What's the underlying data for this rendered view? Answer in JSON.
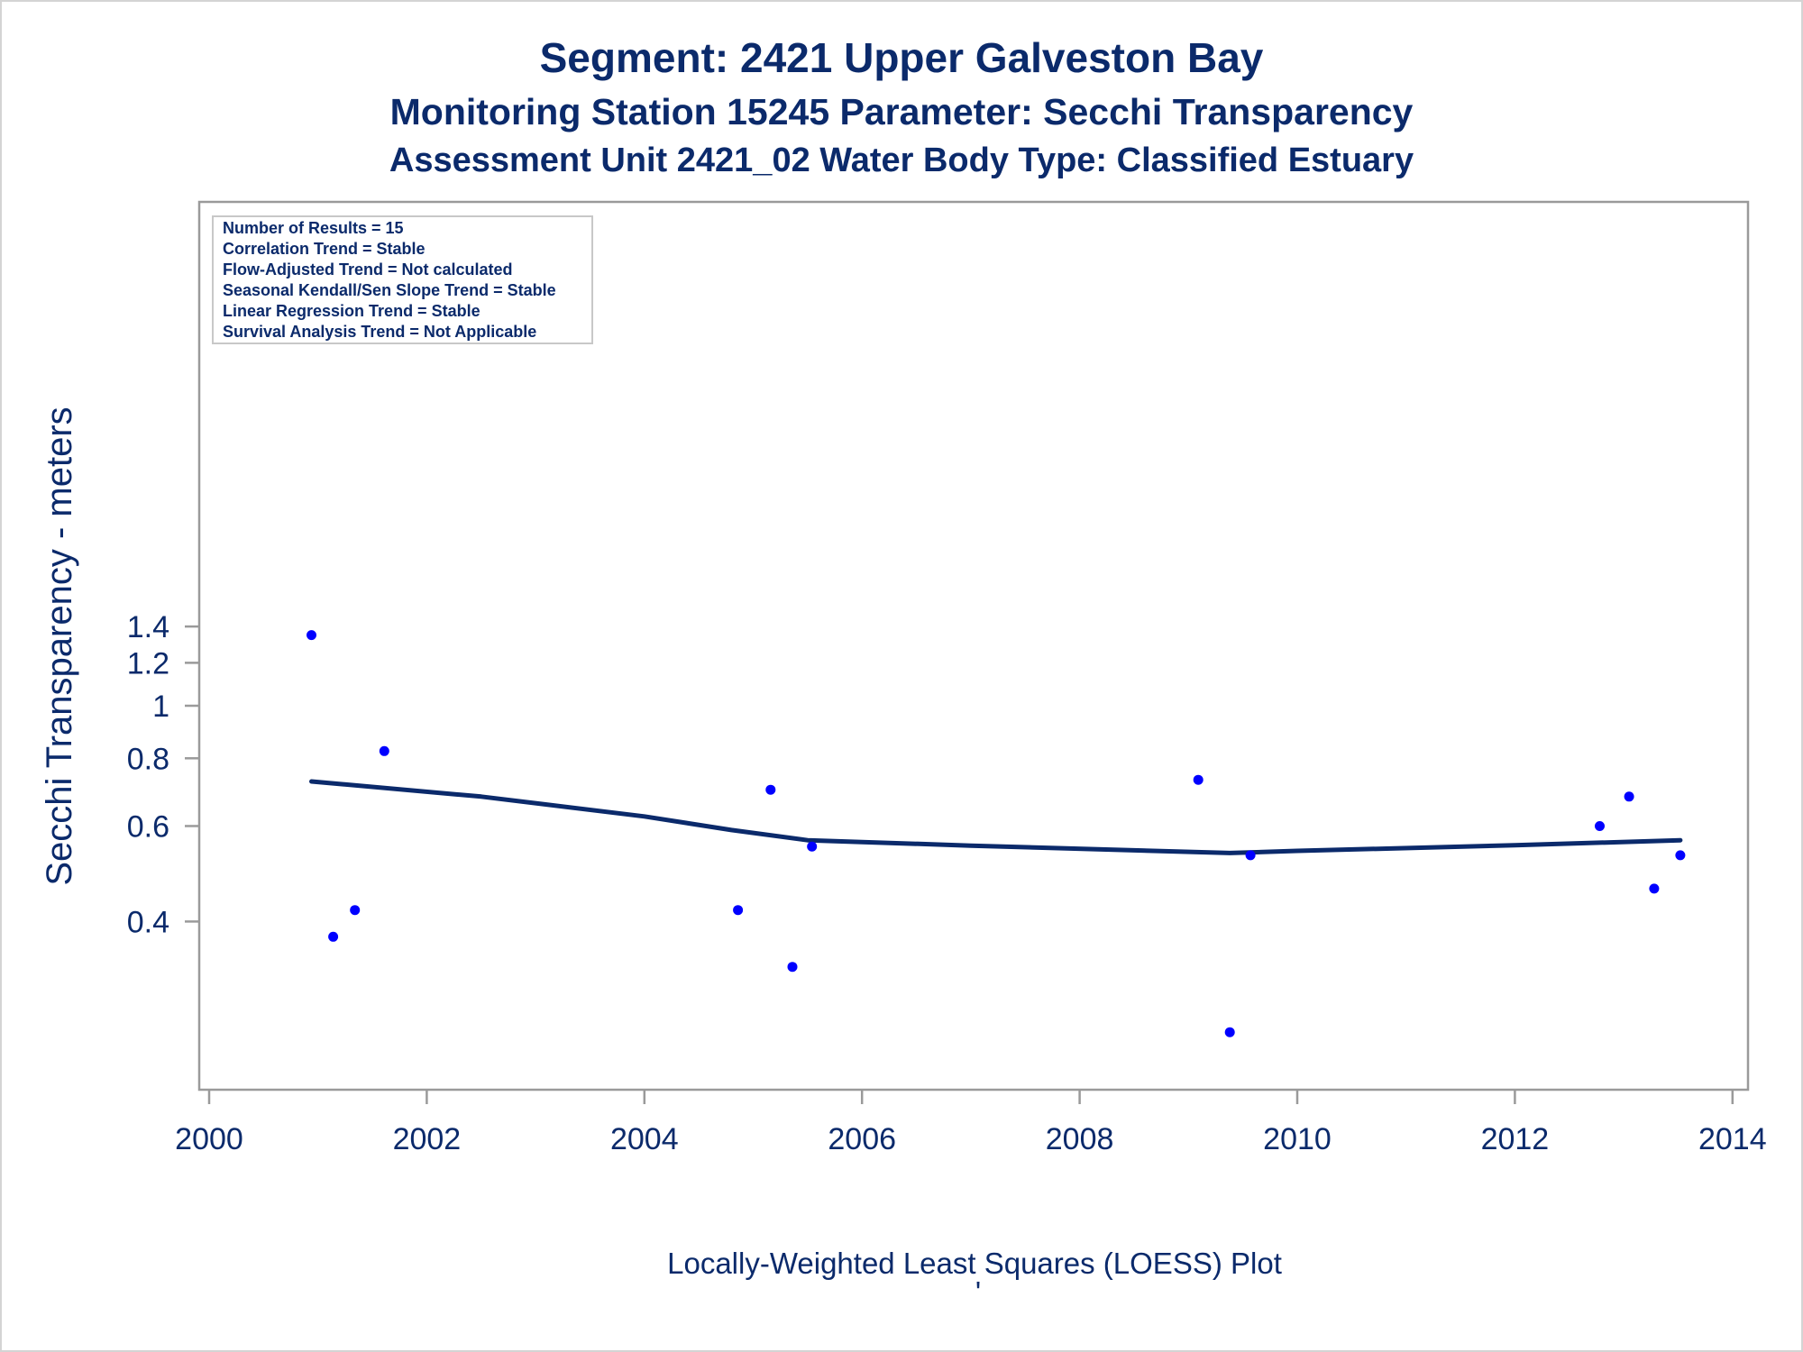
{
  "titles": {
    "line1": "Segment: 2421  Upper Galveston Bay",
    "line2": "Monitoring Station 15245 Parameter: Secchi Transparency",
    "line3": "Assessment Unit 2421_02   Water Body Type: Classified Estuary"
  },
  "info_box": {
    "lines": [
      "Number of Results = 15",
      "Correlation Trend = Stable",
      "Flow-Adjusted Trend = Not calculated",
      "Seasonal Kendall/Sen Slope Trend = Stable",
      "Linear Regression Trend = Stable",
      "Survival Analysis Trend = Not Applicable"
    ]
  },
  "footnote": {
    "text": "Locally-Weighted Least Squares (LOESS) Plot",
    "mark": "'"
  },
  "colors": {
    "text": "#0b2a6b",
    "points": "#0000ff",
    "loess": "#0b2a6b",
    "axis": "#9a9a9a"
  },
  "chart_data": {
    "type": "scatter",
    "title": "Segment: 2421  Upper Galveston Bay",
    "xlabel": "",
    "ylabel": "Secchi Transparency - meters",
    "y_scale": "log",
    "xlim": [
      2000,
      2014
    ],
    "ylim": [
      0.24,
      1.42
    ],
    "x_ticks": [
      2000,
      2002,
      2004,
      2006,
      2008,
      2010,
      2012,
      2014
    ],
    "y_ticks": [
      0.4,
      0.6,
      0.8,
      1,
      1.2,
      1.4
    ],
    "y_tick_labels": [
      "0.4",
      "0.6",
      "0.8",
      "1",
      "1.2",
      "1.4"
    ],
    "grid": false,
    "legend": "top-left",
    "series": [
      {
        "type": "scatter",
        "x": [
          2000.94,
          2001.14,
          2001.34,
          2001.61,
          2004.86,
          2005.16,
          2005.36,
          2005.54,
          2009.09,
          2009.38,
          2009.57,
          2012.78,
          2013.05,
          2013.28,
          2013.52
        ],
        "y": [
          1.35,
          0.375,
          0.42,
          0.825,
          0.42,
          0.7,
          0.33,
          0.55,
          0.73,
          0.25,
          0.53,
          0.6,
          0.68,
          0.46,
          0.53
        ]
      },
      {
        "type": "line",
        "x": [
          2000.94,
          2002.5,
          2004.0,
          2004.8,
          2005.5,
          2007.0,
          2009.38,
          2010.0,
          2012.0,
          2013.52
        ],
        "y": [
          0.725,
          0.68,
          0.625,
          0.59,
          0.565,
          0.552,
          0.535,
          0.54,
          0.553,
          0.565
        ]
      }
    ]
  }
}
